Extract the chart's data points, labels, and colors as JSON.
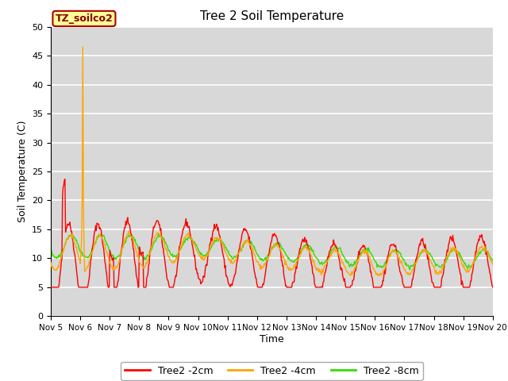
{
  "title": "Tree 2 Soil Temperature",
  "ylabel": "Soil Temperature (C)",
  "xlabel": "Time",
  "ylim": [
    0,
    50
  ],
  "plot_bg": "#d8d8d8",
  "fig_bg": "#ffffff",
  "label_box_text": "TZ_soilco2",
  "label_box_facecolor": "#ffff99",
  "label_box_edgecolor": "#aa0000",
  "label_box_textcolor": "#880000",
  "xtick_labels": [
    "Nov 5",
    "Nov 6",
    "Nov 7",
    "Nov 8",
    "Nov 9",
    "Nov 10",
    "Nov 11",
    "Nov 12",
    "Nov 13",
    "Nov 14",
    "Nov 15",
    "Nov 16",
    "Nov 17",
    "Nov 18",
    "Nov 19",
    "Nov 20"
  ],
  "yticks": [
    0,
    5,
    10,
    15,
    20,
    25,
    30,
    35,
    40,
    45,
    50
  ],
  "series_2cm_color": "#ff0000",
  "series_4cm_color": "#ffa500",
  "series_8cm_color": "#33dd00",
  "series_2cm_label": "Tree2 -2cm",
  "series_4cm_label": "Tree2 -4cm",
  "series_8cm_label": "Tree2 -8cm",
  "linewidth": 1.0
}
